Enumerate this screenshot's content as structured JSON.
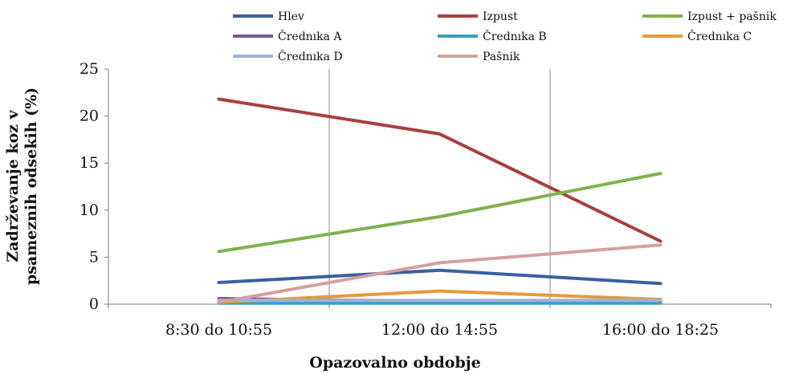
{
  "chart_data": {
    "type": "line",
    "title": "",
    "xlabel": "Opazovalno obdobje",
    "ylabel_lines": [
      "Zadrževanje koz v",
      "psameznih odsekih (%)"
    ],
    "categories": [
      "8:30 do 10:55",
      "12:00 do 14:55",
      "16:00 do 18:25"
    ],
    "ylim": [
      0,
      25
    ],
    "yticks": [
      "0",
      "5",
      "10",
      "15",
      "20",
      "25"
    ],
    "ytick_values": [
      0,
      5,
      10,
      15,
      20,
      25
    ],
    "legend_position": "top",
    "grid": "vertical",
    "series": [
      {
        "name": "Hlev",
        "color": "#3a5fa0",
        "values": [
          2.3,
          3.6,
          2.2
        ]
      },
      {
        "name": "Izpust",
        "color": "#a8403e",
        "values": [
          21.8,
          18.1,
          6.7
        ]
      },
      {
        "name": "Izpust + pašnik",
        "color": "#7fb24c",
        "values": [
          5.6,
          9.3,
          13.9
        ]
      },
      {
        "name": "Črednıka A",
        "color": "#7a56a0",
        "values": [
          0.6,
          0.3,
          0.3
        ]
      },
      {
        "name": "Črednıka  B",
        "color": "#3b9dc2",
        "values": [
          0.1,
          0.1,
          0.1
        ]
      },
      {
        "name": "Črednıka C",
        "color": "#e59a3a",
        "values": [
          0.2,
          1.4,
          0.5
        ]
      },
      {
        "name": "Črednıka D",
        "color": "#9db3d8",
        "values": [
          0.4,
          0.4,
          0.4
        ]
      },
      {
        "name": "Pašnik",
        "color": "#d3a09e",
        "values": [
          0.2,
          4.4,
          6.3
        ]
      }
    ]
  }
}
